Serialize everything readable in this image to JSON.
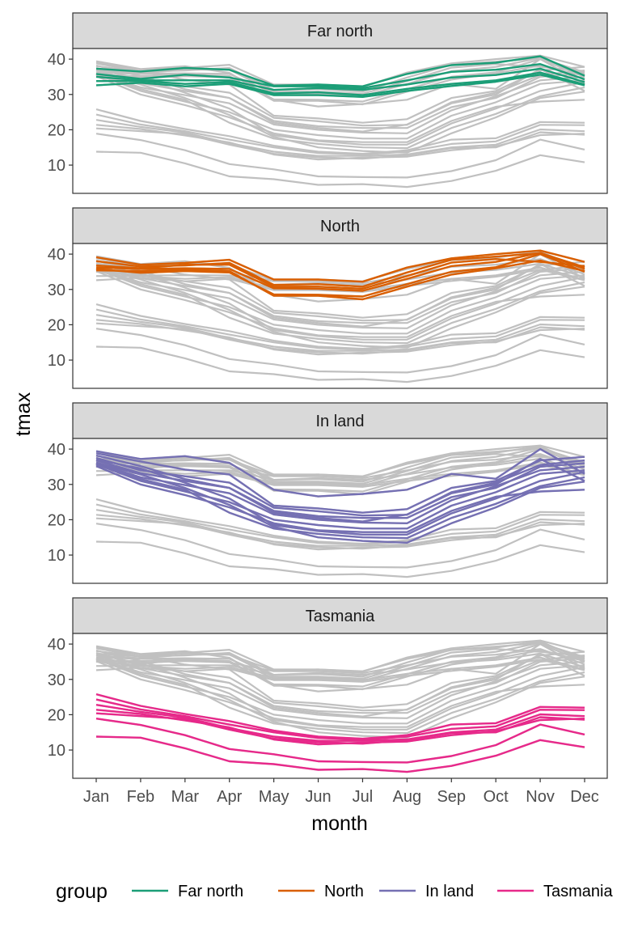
{
  "chart_data": {
    "type": "line",
    "xlabel": "month",
    "ylabel": "tmax",
    "categories": [
      "Jan",
      "Feb",
      "Mar",
      "Apr",
      "May",
      "Jun",
      "Jul",
      "Aug",
      "Sep",
      "Oct",
      "Nov",
      "Dec"
    ],
    "y_ticks": [
      10,
      20,
      30,
      40
    ],
    "ylim": [
      2,
      43
    ],
    "grid": false,
    "legend_position": "bottom",
    "legend_title": "group",
    "background_series_color": "#c0c0c0",
    "groups": [
      {
        "name": "Far north",
        "color": "#1b9e77",
        "series": [
          [
            37.3,
            36.5,
            37.5,
            37.0,
            32.5,
            32.8,
            32.3,
            35.8,
            38.3,
            39.0,
            40.8,
            35.3
          ],
          [
            35.0,
            34.0,
            34.0,
            34.0,
            31.3,
            31.8,
            31.3,
            32.8,
            34.8,
            35.5,
            37.3,
            33.5
          ],
          [
            33.8,
            33.8,
            33.0,
            33.5,
            30.3,
            30.6,
            29.8,
            31.6,
            33.0,
            34.0,
            36.2,
            32.8
          ],
          [
            32.6,
            33.3,
            32.3,
            33.0,
            29.8,
            29.8,
            29.3,
            31.0,
            32.4,
            33.6,
            35.6,
            32.6
          ],
          [
            35.8,
            34.4,
            35.6,
            34.8,
            32.3,
            32.3,
            31.8,
            34.0,
            36.4,
            37.0,
            38.6,
            34.3
          ]
        ]
      },
      {
        "name": "North",
        "color": "#d95f02",
        "series": [
          [
            39.1,
            37.0,
            37.5,
            38.4,
            32.8,
            32.8,
            32.2,
            36.2,
            38.8,
            40.0,
            41.0,
            37.8
          ],
          [
            38.0,
            36.5,
            36.8,
            37.5,
            31.3,
            31.5,
            30.8,
            34.8,
            38.4,
            39.3,
            40.3,
            36.3
          ],
          [
            36.2,
            35.8,
            36.0,
            35.8,
            30.3,
            30.2,
            29.6,
            33.0,
            36.6,
            37.8,
            40.4,
            35.8
          ],
          [
            35.8,
            34.7,
            35.2,
            34.8,
            28.6,
            28.5,
            28.0,
            31.5,
            35.0,
            36.3,
            40.0,
            35.0
          ],
          [
            35.4,
            35.2,
            35.6,
            35.2,
            28.2,
            28.2,
            27.2,
            30.8,
            34.2,
            36.0,
            38.2,
            35.2
          ],
          [
            36.8,
            36.0,
            37.0,
            37.0,
            30.8,
            30.8,
            30.2,
            33.8,
            37.6,
            38.6,
            37.8,
            36.6
          ]
        ]
      },
      {
        "name": "In land",
        "color": "#7570b3",
        "series": [
          [
            39.4,
            37.2,
            38.0,
            36.1,
            28.5,
            26.6,
            27.3,
            28.5,
            33.0,
            31.6,
            40.0,
            33.0
          ],
          [
            38.8,
            36.5,
            34.2,
            32.8,
            24.0,
            23.2,
            22.0,
            23.0,
            29.0,
            31.0,
            36.8,
            37.8
          ],
          [
            37.5,
            34.0,
            32.3,
            30.5,
            23.4,
            22.4,
            21.2,
            21.4,
            27.8,
            30.5,
            35.5,
            36.8
          ],
          [
            36.8,
            33.2,
            31.0,
            29.0,
            22.5,
            21.0,
            20.5,
            20.5,
            26.4,
            29.0,
            35.0,
            36.0
          ],
          [
            36.0,
            32.0,
            29.8,
            27.5,
            21.5,
            20.0,
            19.2,
            19.0,
            25.5,
            29.5,
            34.0,
            35.0
          ],
          [
            35.7,
            31.0,
            28.0,
            25.0,
            20.0,
            18.5,
            17.5,
            17.5,
            24.0,
            27.8,
            33.0,
            34.0
          ],
          [
            35.2,
            30.0,
            27.0,
            23.5,
            19.0,
            17.0,
            16.5,
            16.5,
            22.5,
            26.5,
            28.0,
            28.5
          ],
          [
            35.6,
            31.5,
            28.5,
            22.0,
            17.5,
            16.0,
            15.0,
            14.8,
            20.5,
            24.5,
            29.5,
            32.0
          ],
          [
            38.2,
            35.2,
            31.5,
            29.0,
            22.0,
            20.5,
            19.5,
            21.5,
            27.5,
            30.0,
            37.2,
            31.0
          ],
          [
            37.0,
            34.5,
            30.5,
            26.0,
            18.5,
            16.8,
            15.8,
            15.8,
            21.8,
            26.0,
            31.0,
            33.5
          ],
          [
            36.2,
            32.8,
            29.0,
            24.2,
            18.0,
            15.0,
            14.0,
            13.5,
            19.0,
            23.5,
            29.0,
            30.8
          ]
        ]
      },
      {
        "name": "Tasmania",
        "color": "#e7298a",
        "series": [
          [
            25.8,
            22.5,
            20.2,
            18.2,
            15.5,
            13.8,
            13.2,
            14.2,
            17.2,
            17.6,
            22.2,
            22.0
          ],
          [
            24.3,
            21.5,
            19.6,
            17.2,
            15.0,
            13.4,
            13.0,
            13.8,
            16.0,
            16.7,
            21.4,
            21.3
          ],
          [
            22.8,
            20.8,
            19.2,
            16.2,
            13.8,
            12.6,
            12.6,
            13.0,
            15.0,
            15.8,
            20.1,
            19.6
          ],
          [
            21.4,
            20.2,
            18.4,
            16.4,
            13.0,
            11.6,
            12.1,
            12.4,
            14.2,
            15.3,
            18.5,
            18.9
          ],
          [
            20.4,
            19.6,
            18.8,
            15.8,
            13.2,
            12.2,
            11.8,
            12.8,
            14.8,
            15.0,
            19.3,
            18.6
          ],
          [
            18.9,
            17.1,
            14.2,
            10.3,
            8.8,
            6.8,
            6.6,
            6.5,
            8.3,
            11.4,
            17.2,
            14.4
          ],
          [
            13.8,
            13.5,
            10.5,
            6.8,
            6.0,
            4.4,
            4.6,
            3.8,
            5.5,
            8.4,
            12.8,
            10.8
          ]
        ]
      }
    ]
  }
}
